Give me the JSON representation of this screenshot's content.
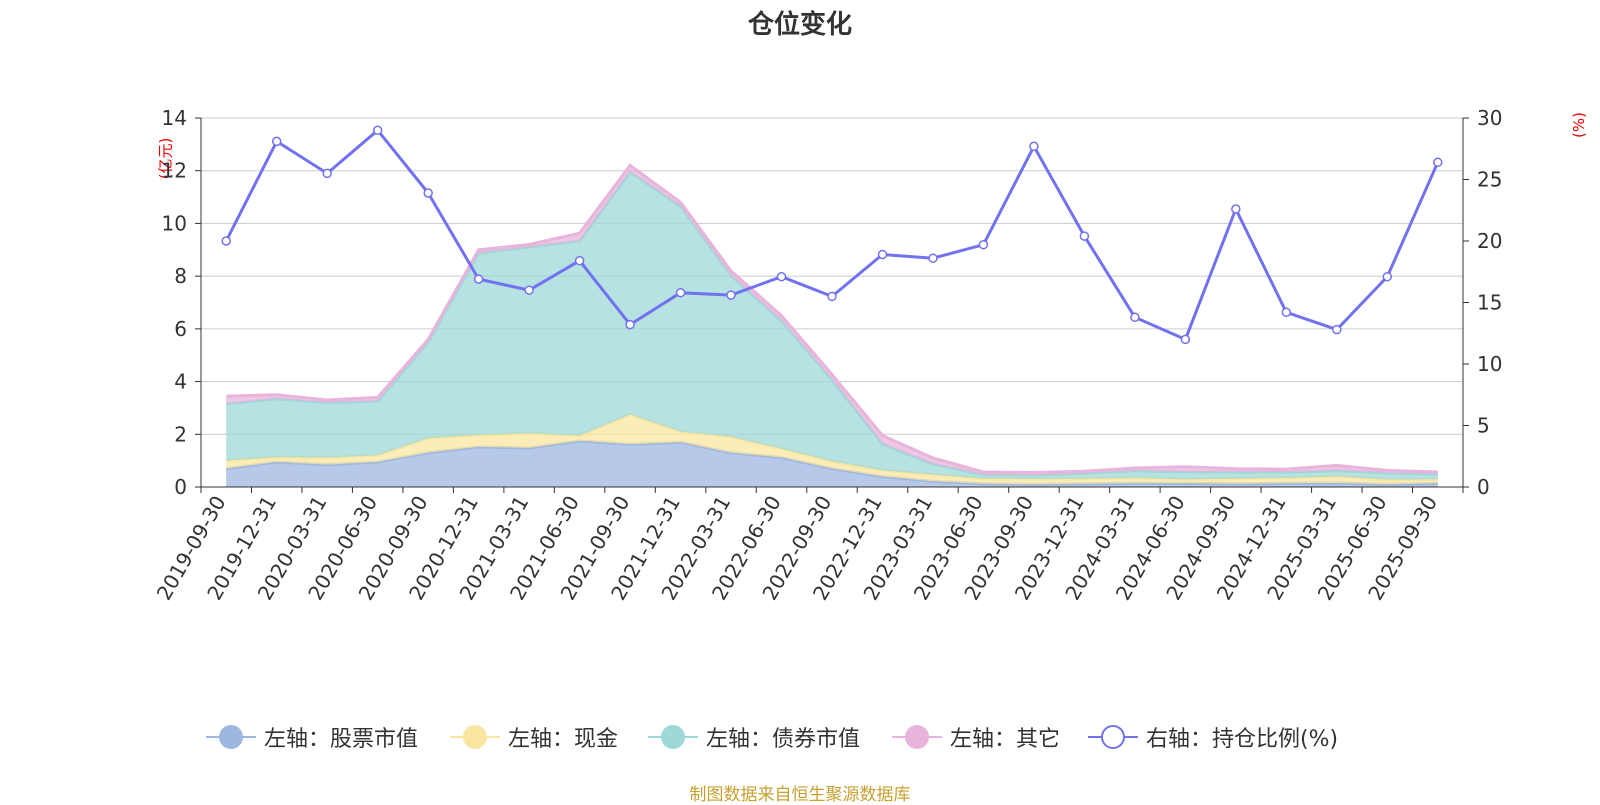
{
  "title": "仓位变化",
  "colors": {
    "stock": "#9db7e0",
    "cash": "#f9e6a0",
    "bond": "#9ed8d8",
    "other": "#e8b4dc",
    "ratio": "#7272f0",
    "unit": "#ee0000",
    "source": "#c8a030",
    "grid": "#cccccc",
    "axis": "#333333"
  },
  "left_unit": "(亿元)",
  "right_unit": "(%)",
  "legend": [
    {
      "key": "stock",
      "label": "左轴：股票市值"
    },
    {
      "key": "cash",
      "label": "左轴：现金"
    },
    {
      "key": "bond",
      "label": "左轴：债券市值"
    },
    {
      "key": "other",
      "label": "左轴：其它"
    },
    {
      "key": "ratio",
      "label": "右轴：持仓比例(%)"
    }
  ],
  "source": "制图数据来自恒生聚源数据库",
  "chart_data": {
    "type": "area",
    "title": "仓位变化",
    "categories": [
      "2019-09-30",
      "2019-12-31",
      "2020-03-31",
      "2020-06-30",
      "2020-09-30",
      "2020-12-31",
      "2021-03-31",
      "2021-06-30",
      "2021-09-30",
      "2021-12-31",
      "2022-03-31",
      "2022-06-30",
      "2022-09-30",
      "2022-12-31",
      "2023-03-31",
      "2023-06-30",
      "2023-09-30",
      "2023-12-31",
      "2024-03-31",
      "2024-06-30",
      "2024-09-30",
      "2024-12-31",
      "2025-03-31",
      "2025-06-30",
      "2025-09-30"
    ],
    "left_axis": {
      "label": "(亿元)",
      "ylim": [
        0,
        14
      ],
      "ticks": [
        0,
        2,
        4,
        6,
        8,
        10,
        12,
        14
      ]
    },
    "right_axis": {
      "label": "(%)",
      "ylim": [
        0,
        30
      ],
      "ticks": [
        0,
        5,
        10,
        15,
        20,
        25,
        30
      ]
    },
    "grid": true,
    "legend_position": "bottom",
    "stacked_series": [
      {
        "name": "左轴：股票市值",
        "key": "stock",
        "values": [
          0.7,
          0.95,
          0.85,
          0.95,
          1.3,
          1.52,
          1.48,
          1.75,
          1.62,
          1.7,
          1.3,
          1.12,
          0.7,
          0.4,
          0.22,
          0.12,
          0.1,
          0.12,
          0.14,
          0.14,
          0.12,
          0.14,
          0.15,
          0.1,
          0.14
        ]
      },
      {
        "name": "左轴：现金",
        "key": "cash",
        "values": [
          0.3,
          0.18,
          0.27,
          0.25,
          0.55,
          0.45,
          0.55,
          0.2,
          1.13,
          0.4,
          0.6,
          0.33,
          0.27,
          0.23,
          0.25,
          0.2,
          0.2,
          0.2,
          0.2,
          0.15,
          0.2,
          0.2,
          0.25,
          0.18,
          0.15
        ]
      },
      {
        "name": "左轴：债券市值",
        "key": "bond",
        "values": [
          2.15,
          2.22,
          2.08,
          2.05,
          3.65,
          6.9,
          7.07,
          7.38,
          9.2,
          8.55,
          6.12,
          4.85,
          3.1,
          1.0,
          0.4,
          0.15,
          0.15,
          0.2,
          0.28,
          0.28,
          0.25,
          0.22,
          0.22,
          0.25,
          0.2
        ]
      },
      {
        "name": "左轴：其它",
        "key": "other",
        "values": [
          0.3,
          0.15,
          0.1,
          0.15,
          0.1,
          0.13,
          0.1,
          0.3,
          0.25,
          0.15,
          0.18,
          0.2,
          0.2,
          0.32,
          0.23,
          0.1,
          0.1,
          0.08,
          0.1,
          0.2,
          0.12,
          0.12,
          0.2,
          0.1,
          0.08
        ]
      }
    ],
    "line_series": {
      "name": "右轴：持仓比例(%)",
      "key": "ratio",
      "axis": "right",
      "values": [
        20.0,
        28.1,
        25.5,
        29.0,
        23.9,
        16.9,
        16.0,
        18.4,
        13.2,
        15.8,
        15.6,
        17.1,
        15.5,
        18.9,
        18.6,
        19.7,
        27.7,
        20.4,
        13.8,
        12.0,
        22.6,
        14.2,
        12.8,
        17.1,
        26.4
      ]
    }
  }
}
